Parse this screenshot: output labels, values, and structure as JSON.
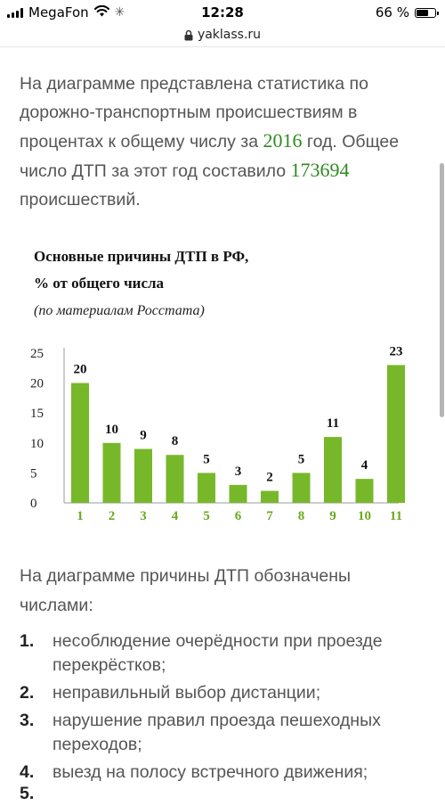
{
  "status_bar": {
    "carrier": "MegaFon",
    "time": "12:28",
    "battery": "66 %",
    "battery_level": 0.66,
    "spinner_glyph": "✳"
  },
  "url_bar": {
    "domain": "yaklass.ru"
  },
  "intro": {
    "part1": "На диаграмме представлена статистика по дорожно-транспортным происшествиям в процентах к общему числу за ",
    "year": "2016",
    "part2": " год. Общее число ДТП за этот год составило ",
    "total": "173694",
    "part3": " происшествий."
  },
  "chart_data": {
    "type": "bar",
    "title_line1": "Основные причины ДТП в РФ,",
    "title_line2": "% от общего числа",
    "subtitle": "(по материалам Росстата)",
    "categories": [
      "1",
      "2",
      "3",
      "4",
      "5",
      "6",
      "7",
      "8",
      "9",
      "10",
      "11"
    ],
    "values": [
      20,
      10,
      9,
      8,
      5,
      3,
      2,
      5,
      11,
      4,
      23
    ],
    "yticks": [
      "0",
      "5",
      "10",
      "15",
      "20",
      "25"
    ],
    "ylim": [
      0,
      25
    ],
    "xlabel": "",
    "ylabel": "",
    "grid": false,
    "bar_color": "#77b82a",
    "category_label_color": "#6aaa1e"
  },
  "legend_intro": "На диаграмме причины ДТП обозначены числами:",
  "reasons": [
    {
      "num": "1.",
      "text": "несоблюдение очерёдности при проезде перекрёстков;"
    },
    {
      "num": "2.",
      "text": "неправильный выбор дистанции;"
    },
    {
      "num": "3.",
      "text": "нарушение правил проезда пешеходных переходов;"
    },
    {
      "num": "4.",
      "text": "выезд на полосу встречного движения;"
    }
  ],
  "reason_partial": "5."
}
